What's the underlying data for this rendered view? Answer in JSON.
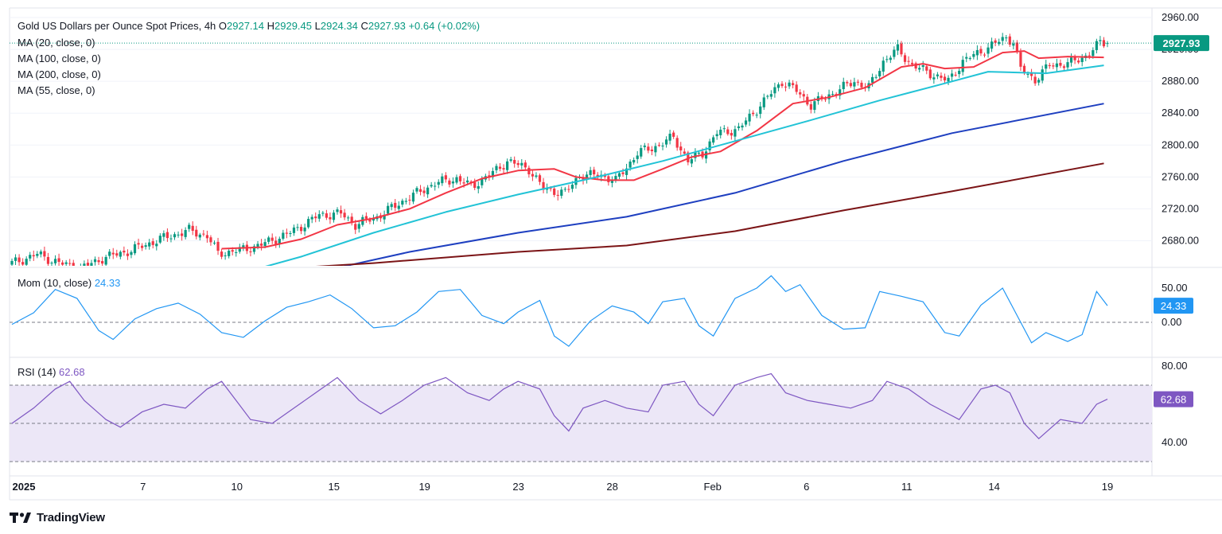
{
  "header": {
    "title": "Gold US Dollars per Ounce Spot Prices, 4h",
    "open_label": "O",
    "open": "2927.14",
    "high_label": "H",
    "high": "2929.45",
    "low_label": "L",
    "low": "2924.34",
    "close_label": "C",
    "close": "2927.93",
    "change": "+0.64 (+0.02%)"
  },
  "legend": {
    "ma20": "MA (20, close, 0)",
    "ma100": "MA (100, close, 0)",
    "ma200": "MA (200, close, 0)",
    "ma55": "MA (55, close, 0)"
  },
  "momentum": {
    "label": "Mom (10, close)",
    "value": "24.33"
  },
  "rsi": {
    "label": "RSI (14)",
    "value": "62.68"
  },
  "brand": "TradingView",
  "colors": {
    "up": "#089981",
    "down": "#f23645",
    "ma20": "#f23645",
    "ma55": "#22c3d6",
    "ma100": "#1e3fc0",
    "ma200": "#7b1416",
    "mom": "#2196f3",
    "rsi": "#7e57c2",
    "rsi_band": "#ece7f7",
    "price_tag": "#089981",
    "mom_tag": "#2196f3",
    "rsi_tag": "#7e57c2"
  },
  "chart_data": [
    {
      "type": "candlestick",
      "title": "Gold US Dollars per Ounce Spot Prices, 4h",
      "price_axis_ticks": [
        2680,
        2720,
        2760,
        2800,
        2840,
        2880,
        2920,
        2960
      ],
      "price_axis_labels": [
        "2680.00",
        "2720.00",
        "2760.00",
        "2800.00",
        "2840.00",
        "2880.00",
        "2920.00",
        "2960.00"
      ],
      "x_axis_labels": [
        "2025",
        "7",
        "10",
        "15",
        "19",
        "23",
        "28",
        "Feb",
        "6",
        "11",
        "14",
        "19"
      ],
      "last_price": 2927.93,
      "last_price_label": "2927.93",
      "anchors": [
        {
          "t": 0,
          "p": 2650
        },
        {
          "t": 8,
          "p": 2663
        },
        {
          "t": 14,
          "p": 2652
        },
        {
          "t": 20,
          "p": 2645
        },
        {
          "t": 26,
          "p": 2658
        },
        {
          "t": 34,
          "p": 2668
        },
        {
          "t": 42,
          "p": 2682
        },
        {
          "t": 50,
          "p": 2693
        },
        {
          "t": 55,
          "p": 2686
        },
        {
          "t": 58,
          "p": 2664
        },
        {
          "t": 64,
          "p": 2668
        },
        {
          "t": 70,
          "p": 2675
        },
        {
          "t": 78,
          "p": 2690
        },
        {
          "t": 86,
          "p": 2712
        },
        {
          "t": 92,
          "p": 2714
        },
        {
          "t": 96,
          "p": 2700
        },
        {
          "t": 102,
          "p": 2710
        },
        {
          "t": 110,
          "p": 2732
        },
        {
          "t": 118,
          "p": 2752
        },
        {
          "t": 124,
          "p": 2758
        },
        {
          "t": 128,
          "p": 2748
        },
        {
          "t": 134,
          "p": 2765
        },
        {
          "t": 138,
          "p": 2780
        },
        {
          "t": 144,
          "p": 2770
        },
        {
          "t": 148,
          "p": 2745
        },
        {
          "t": 154,
          "p": 2740
        },
        {
          "t": 158,
          "p": 2762
        },
        {
          "t": 164,
          "p": 2762
        },
        {
          "t": 168,
          "p": 2755
        },
        {
          "t": 174,
          "p": 2790
        },
        {
          "t": 180,
          "p": 2800
        },
        {
          "t": 184,
          "p": 2810
        },
        {
          "t": 188,
          "p": 2780
        },
        {
          "t": 192,
          "p": 2790
        },
        {
          "t": 196,
          "p": 2815
        },
        {
          "t": 202,
          "p": 2820
        },
        {
          "t": 208,
          "p": 2850
        },
        {
          "t": 214,
          "p": 2880
        },
        {
          "t": 218,
          "p": 2868
        },
        {
          "t": 222,
          "p": 2850
        },
        {
          "t": 228,
          "p": 2865
        },
        {
          "t": 234,
          "p": 2880
        },
        {
          "t": 238,
          "p": 2872
        },
        {
          "t": 242,
          "p": 2905
        },
        {
          "t": 246,
          "p": 2920
        },
        {
          "t": 250,
          "p": 2900
        },
        {
          "t": 256,
          "p": 2888
        },
        {
          "t": 260,
          "p": 2880
        },
        {
          "t": 264,
          "p": 2905
        },
        {
          "t": 270,
          "p": 2920
        },
        {
          "t": 276,
          "p": 2935
        },
        {
          "t": 278,
          "p": 2930
        },
        {
          "t": 280,
          "p": 2895
        },
        {
          "t": 284,
          "p": 2882
        },
        {
          "t": 288,
          "p": 2900
        },
        {
          "t": 294,
          "p": 2903
        },
        {
          "t": 298,
          "p": 2912
        },
        {
          "t": 302,
          "p": 2927.93
        }
      ],
      "series": [
        {
          "name": "MA (20, close, 0)",
          "points": [
            [
              58,
              2670
            ],
            [
              70,
              2672
            ],
            [
              80,
              2682
            ],
            [
              90,
              2700
            ],
            [
              100,
              2708
            ],
            [
              110,
              2720
            ],
            [
              120,
              2740
            ],
            [
              130,
              2758
            ],
            [
              140,
              2768
            ],
            [
              150,
              2770
            ],
            [
              156,
              2760
            ],
            [
              164,
              2756
            ],
            [
              172,
              2756
            ],
            [
              180,
              2770
            ],
            [
              188,
              2785
            ],
            [
              196,
              2792
            ],
            [
              206,
              2818
            ],
            [
              216,
              2852
            ],
            [
              226,
              2860
            ],
            [
              236,
              2872
            ],
            [
              246,
              2898
            ],
            [
              252,
              2902
            ],
            [
              258,
              2896
            ],
            [
              266,
              2898
            ],
            [
              274,
              2916
            ],
            [
              280,
              2918
            ],
            [
              284,
              2909
            ],
            [
              292,
              2911
            ],
            [
              302,
              2910
            ]
          ]
        },
        {
          "name": "MA (55, close, 0)",
          "points": [
            [
              64,
              2640
            ],
            [
              80,
              2660
            ],
            [
              100,
              2690
            ],
            [
              120,
              2716
            ],
            [
              140,
              2738
            ],
            [
              160,
              2758
            ],
            [
              180,
              2780
            ],
            [
              200,
              2805
            ],
            [
              220,
              2830
            ],
            [
              240,
              2856
            ],
            [
              256,
              2875
            ],
            [
              270,
              2892
            ],
            [
              286,
              2890
            ],
            [
              302,
              2900
            ]
          ]
        },
        {
          "name": "MA (100, close, 0)",
          "points": [
            [
              86,
              2642
            ],
            [
              110,
              2666
            ],
            [
              140,
              2690
            ],
            [
              170,
              2710
            ],
            [
              200,
              2740
            ],
            [
              230,
              2780
            ],
            [
              260,
              2815
            ],
            [
              302,
              2852
            ]
          ]
        },
        {
          "name": "MA (200, close, 0)",
          "points": [
            [
              60,
              2641
            ],
            [
              100,
              2652
            ],
            [
              140,
              2666
            ],
            [
              170,
              2674
            ],
            [
              200,
              2692
            ],
            [
              230,
              2718
            ],
            [
              260,
              2742
            ],
            [
              302,
              2777
            ]
          ]
        }
      ]
    },
    {
      "type": "line",
      "title": "Mom (10, close)",
      "y_axis_labels": [
        "50.00",
        "0.00"
      ],
      "y_ticks": [
        50,
        0
      ],
      "last_value": 24.33,
      "series": [
        {
          "name": "Mom (10, close)",
          "points": [
            [
              0,
              -3
            ],
            [
              6,
              14
            ],
            [
              12,
              48
            ],
            [
              18,
              35
            ],
            [
              24,
              -12
            ],
            [
              28,
              -25
            ],
            [
              34,
              5
            ],
            [
              40,
              20
            ],
            [
              46,
              28
            ],
            [
              52,
              12
            ],
            [
              58,
              -15
            ],
            [
              64,
              -22
            ],
            [
              70,
              2
            ],
            [
              76,
              22
            ],
            [
              82,
              30
            ],
            [
              88,
              40
            ],
            [
              94,
              20
            ],
            [
              100,
              -8
            ],
            [
              106,
              -5
            ],
            [
              112,
              15
            ],
            [
              118,
              45
            ],
            [
              124,
              48
            ],
            [
              130,
              10
            ],
            [
              136,
              -2
            ],
            [
              140,
              15
            ],
            [
              146,
              32
            ],
            [
              150,
              -20
            ],
            [
              154,
              -35
            ],
            [
              160,
              2
            ],
            [
              166,
              24
            ],
            [
              172,
              15
            ],
            [
              176,
              -2
            ],
            [
              180,
              30
            ],
            [
              186,
              35
            ],
            [
              190,
              -5
            ],
            [
              194,
              -20
            ],
            [
              200,
              35
            ],
            [
              206,
              50
            ],
            [
              210,
              68
            ],
            [
              214,
              45
            ],
            [
              218,
              55
            ],
            [
              224,
              10
            ],
            [
              230,
              -10
            ],
            [
              236,
              -8
            ],
            [
              240,
              45
            ],
            [
              246,
              38
            ],
            [
              252,
              30
            ],
            [
              258,
              -15
            ],
            [
              262,
              -20
            ],
            [
              268,
              25
            ],
            [
              274,
              50
            ],
            [
              278,
              10
            ],
            [
              282,
              -30
            ],
            [
              286,
              -15
            ],
            [
              292,
              -28
            ],
            [
              296,
              -18
            ],
            [
              300,
              45
            ],
            [
              303,
              24.33
            ]
          ]
        }
      ]
    },
    {
      "type": "line",
      "title": "RSI (14)",
      "y_axis_labels": [
        "80.00",
        "40.00"
      ],
      "y_ticks": [
        80,
        40
      ],
      "bands": [
        70,
        50,
        30
      ],
      "last_value": 62.68,
      "series": [
        {
          "name": "RSI (14)",
          "points": [
            [
              0,
              50
            ],
            [
              6,
              58
            ],
            [
              12,
              68
            ],
            [
              16,
              72
            ],
            [
              20,
              62
            ],
            [
              26,
              52
            ],
            [
              30,
              48
            ],
            [
              36,
              56
            ],
            [
              42,
              60
            ],
            [
              48,
              58
            ],
            [
              54,
              68
            ],
            [
              58,
              72
            ],
            [
              62,
              62
            ],
            [
              66,
              52
            ],
            [
              72,
              50
            ],
            [
              78,
              58
            ],
            [
              84,
              66
            ],
            [
              90,
              74
            ],
            [
              96,
              62
            ],
            [
              102,
              55
            ],
            [
              108,
              62
            ],
            [
              114,
              70
            ],
            [
              120,
              74
            ],
            [
              126,
              66
            ],
            [
              132,
              62
            ],
            [
              136,
              68
            ],
            [
              140,
              72
            ],
            [
              146,
              68
            ],
            [
              150,
              54
            ],
            [
              154,
              46
            ],
            [
              158,
              58
            ],
            [
              164,
              62
            ],
            [
              170,
              58
            ],
            [
              176,
              56
            ],
            [
              180,
              70
            ],
            [
              186,
              72
            ],
            [
              190,
              60
            ],
            [
              194,
              54
            ],
            [
              200,
              70
            ],
            [
              206,
              74
            ],
            [
              210,
              76
            ],
            [
              214,
              66
            ],
            [
              220,
              62
            ],
            [
              226,
              60
            ],
            [
              232,
              58
            ],
            [
              238,
              62
            ],
            [
              242,
              72
            ],
            [
              248,
              68
            ],
            [
              254,
              60
            ],
            [
              258,
              56
            ],
            [
              262,
              52
            ],
            [
              268,
              68
            ],
            [
              272,
              70
            ],
            [
              276,
              66
            ],
            [
              280,
              50
            ],
            [
              284,
              42
            ],
            [
              290,
              52
            ],
            [
              296,
              50
            ],
            [
              300,
              60
            ],
            [
              303,
              62.68
            ]
          ]
        }
      ]
    }
  ]
}
